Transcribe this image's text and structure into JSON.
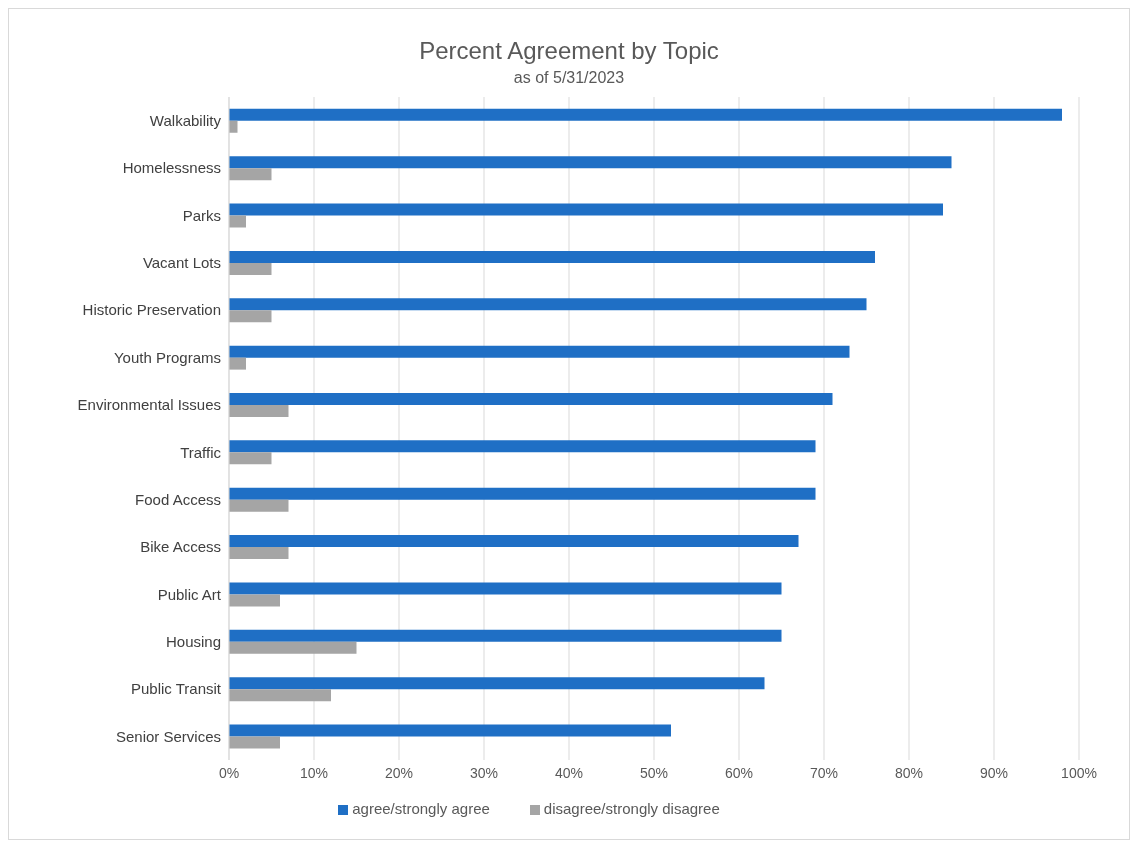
{
  "chart_data": {
    "type": "bar",
    "orientation": "horizontal",
    "title": "Percent Agreement by Topic",
    "subtitle": "as of 5/31/2023",
    "categories": [
      "Walkability",
      "Homelessness",
      "Parks",
      "Vacant Lots",
      "Historic Preservation",
      "Youth Programs",
      "Environmental Issues",
      "Traffic",
      "Food Access",
      "Bike Access",
      "Public Art",
      "Housing",
      "Public Transit",
      "Senior Services"
    ],
    "series": [
      {
        "name": "agree/strongly agree",
        "color": "#1f6fc5",
        "values": [
          98,
          85,
          84,
          76,
          75,
          73,
          71,
          69,
          69,
          67,
          65,
          65,
          63,
          52
        ]
      },
      {
        "name": "disagree/strongly disagree",
        "color": "#a5a5a5",
        "values": [
          1,
          5,
          2,
          5,
          5,
          2,
          7,
          5,
          7,
          7,
          6,
          15,
          12,
          6
        ]
      }
    ],
    "xlim": [
      0,
      100
    ],
    "xticks": [
      {
        "value": 0,
        "label": "0%"
      },
      {
        "value": 10,
        "label": "10%"
      },
      {
        "value": 20,
        "label": "20%"
      },
      {
        "value": 30,
        "label": "30%"
      },
      {
        "value": 40,
        "label": "40%"
      },
      {
        "value": 50,
        "label": "50%"
      },
      {
        "value": 60,
        "label": "60%"
      },
      {
        "value": 70,
        "label": "70%"
      },
      {
        "value": 80,
        "label": "80%"
      },
      {
        "value": 90,
        "label": "90%"
      },
      {
        "value": 100,
        "label": "100%"
      }
    ],
    "grid": "x",
    "legend": "bottom"
  }
}
